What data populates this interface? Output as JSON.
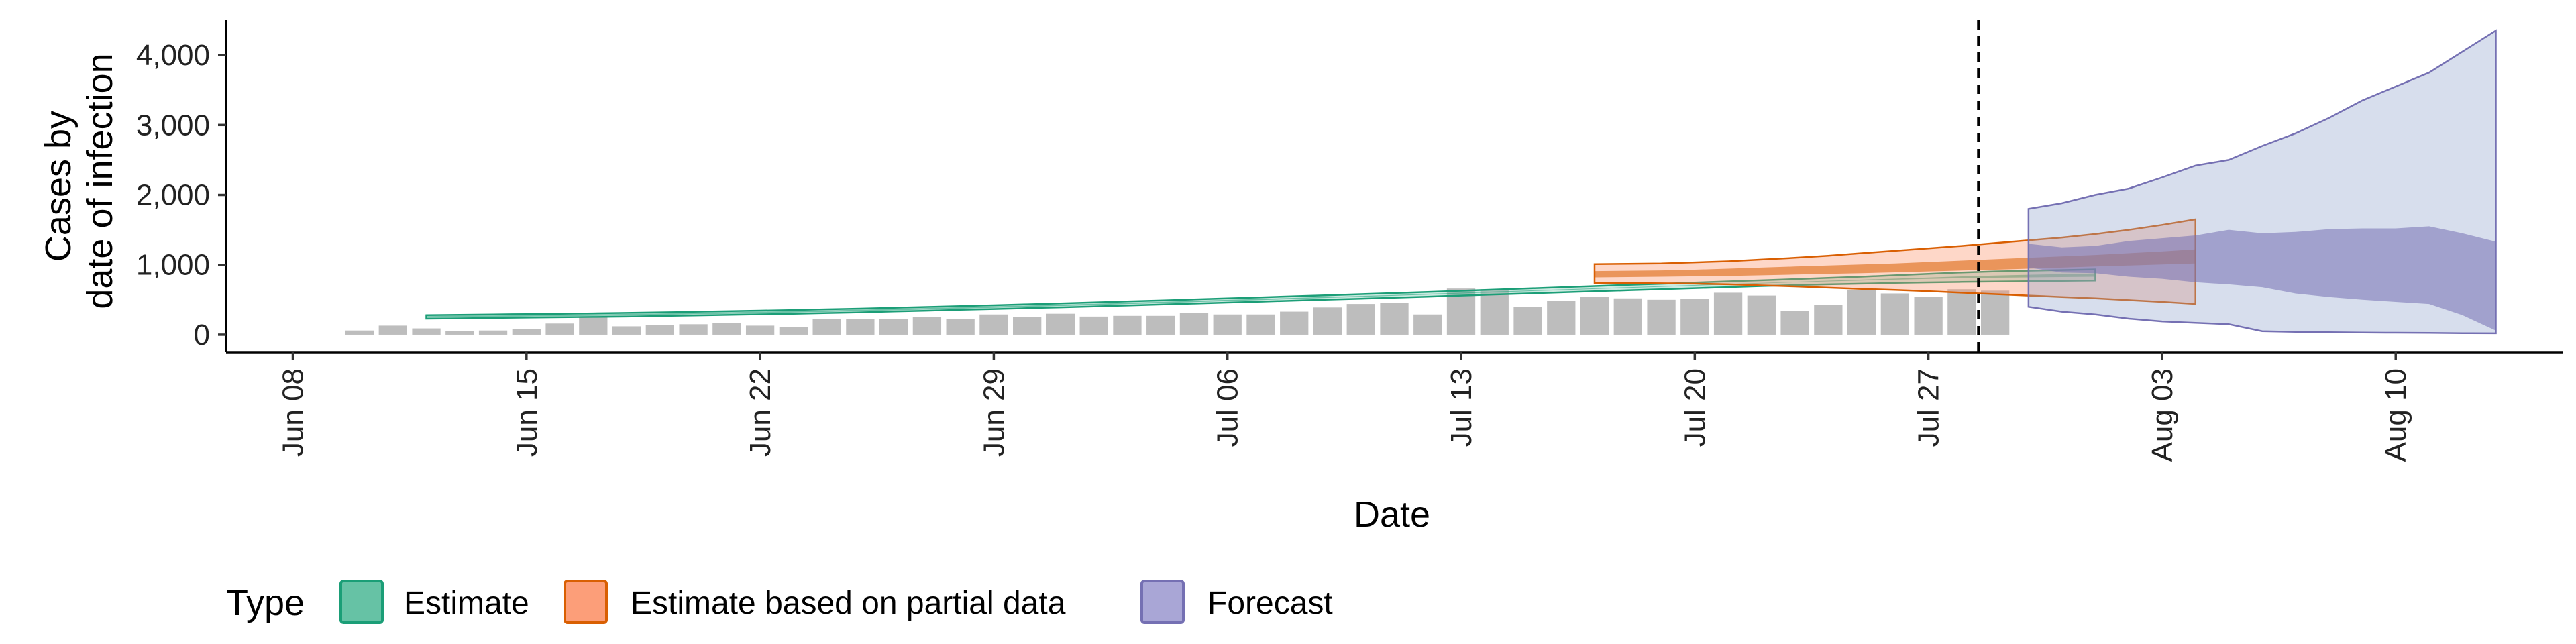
{
  "chart_data": {
    "type": "area",
    "xlabel": "Date",
    "ylabel_lines": [
      "Cases by",
      "date of infection"
    ],
    "ylim": [
      -250,
      4500
    ],
    "xlim": [
      "2021-06-06",
      "2021-08-15"
    ],
    "y_ticks": [
      0,
      1000,
      2000,
      3000,
      4000
    ],
    "y_tick_labels": [
      "0",
      "1,000",
      "2,000",
      "3,000",
      "4,000"
    ],
    "x_ticks": [
      "2021-06-08",
      "2021-06-15",
      "2021-06-22",
      "2021-06-29",
      "2021-07-06",
      "2021-07-13",
      "2021-07-20",
      "2021-07-27",
      "2021-08-03",
      "2021-08-10"
    ],
    "x_tick_labels": [
      "Jun 08",
      "Jun 15",
      "Jun 22",
      "Jun 29",
      "Jul 06",
      "Jul 13",
      "Jul 20",
      "Jul 27",
      "Aug 03",
      "Aug 10"
    ],
    "forecast_cutoff_date": "2021-07-29",
    "bars": {
      "color": "#bdbdbd",
      "start_date": "2021-06-10",
      "values": [
        60,
        130,
        90,
        50,
        60,
        80,
        160,
        260,
        120,
        140,
        150,
        170,
        130,
        110,
        230,
        220,
        230,
        250,
        230,
        290,
        250,
        300,
        260,
        270,
        270,
        310,
        290,
        290,
        330,
        390,
        440,
        460,
        290,
        660,
        650,
        400,
        480,
        540,
        520,
        500,
        510,
        600,
        560,
        340,
        430,
        640,
        590,
        540,
        650,
        630
      ]
    },
    "bands": [
      {
        "type": "Estimate",
        "color": "#1b9e77",
        "fill": "#66c2a5",
        "start_date": "2021-06-12",
        "lower_90": [
          230,
          235,
          240,
          245,
          250,
          255,
          260,
          268,
          276,
          284,
          292,
          300,
          310,
          320,
          332,
          344,
          356,
          368,
          380,
          392,
          405,
          418,
          432,
          446,
          460,
          474,
          488,
          502,
          516,
          530,
          545,
          560,
          575,
          590,
          605,
          620,
          635,
          650,
          665,
          680,
          695,
          710,
          720,
          730,
          740,
          748,
          755,
          760,
          765,
          770,
          775
        ],
        "upper_90": [
          280,
          285,
          290,
          295,
          300,
          306,
          312,
          320,
          328,
          336,
          345,
          354,
          364,
          374,
          386,
          398,
          410,
          422,
          435,
          448,
          462,
          476,
          490,
          505,
          520,
          535,
          550,
          565,
          580,
          595,
          612,
          628,
          645,
          662,
          678,
          695,
          712,
          728,
          745,
          762,
          778,
          795,
          812,
          830,
          850,
          870,
          890,
          905,
          915,
          925,
          935
        ],
        "lower_50": [
          245,
          250,
          255,
          260,
          265,
          270,
          276,
          284,
          292,
          300,
          308,
          317,
          327,
          337,
          349,
          361,
          373,
          385,
          398,
          411,
          424,
          438,
          452,
          467,
          482,
          497,
          512,
          527,
          542,
          557,
          573,
          589,
          605,
          621,
          637,
          653,
          669,
          685,
          701,
          717,
          733,
          749,
          762,
          775,
          787,
          798,
          808,
          815,
          820,
          825,
          830
        ],
        "upper_50": [
          265,
          270,
          275,
          280,
          285,
          291,
          297,
          305,
          313,
          321,
          330,
          338,
          348,
          358,
          370,
          382,
          394,
          406,
          418,
          430,
          444,
          457,
          471,
          485,
          499,
          513,
          527,
          541,
          555,
          569,
          585,
          600,
          616,
          632,
          647,
          663,
          679,
          694,
          710,
          726,
          741,
          757,
          772,
          787,
          802,
          818,
          834,
          847,
          857,
          866,
          875
        ]
      },
      {
        "type": "Estimate based on partial data",
        "color": "#d95f02",
        "fill": "#fc8d62",
        "start_date": "2021-07-17",
        "lower_90": [
          740,
          738,
          735,
          730,
          720,
          705,
          690,
          672,
          655,
          640,
          622,
          600,
          580,
          560,
          540,
          520,
          495,
          470,
          440
        ],
        "upper_90": [
          1010,
          1015,
          1020,
          1035,
          1050,
          1075,
          1100,
          1130,
          1165,
          1200,
          1235,
          1270,
          1310,
          1350,
          1390,
          1440,
          1500,
          1570,
          1650
        ],
        "lower_50": [
          820,
          825,
          830,
          835,
          840,
          850,
          860,
          870,
          880,
          892,
          905,
          918,
          930,
          945,
          960,
          975,
          990,
          1005,
          1020
        ],
        "upper_50": [
          910,
          915,
          920,
          930,
          945,
          960,
          975,
          990,
          1005,
          1020,
          1040,
          1060,
          1080,
          1100,
          1120,
          1140,
          1165,
          1190,
          1220
        ]
      },
      {
        "type": "Forecast",
        "color": "#7570b3",
        "fill": "#8da0cb",
        "start_date": "2021-07-30",
        "lower_90": [
          400,
          330,
          290,
          230,
          190,
          170,
          150,
          50,
          40,
          35,
          30,
          28,
          25,
          22,
          20
        ],
        "upper_90": [
          1800,
          1880,
          2000,
          2090,
          2250,
          2420,
          2500,
          2700,
          2880,
          3100,
          3350,
          3550,
          3750,
          4050,
          4350
        ],
        "lower_50": [
          960,
          890,
          880,
          830,
          800,
          750,
          720,
          680,
          590,
          540,
          500,
          470,
          440,
          280,
          60
        ],
        "upper_50": [
          1300,
          1250,
          1270,
          1340,
          1380,
          1420,
          1500,
          1450,
          1470,
          1510,
          1520,
          1520,
          1550,
          1450,
          1330
        ]
      }
    ],
    "legend": {
      "title": "Type",
      "position": "bottom-left",
      "items": [
        {
          "label": "Estimate",
          "fill": "#66c2a5",
          "stroke": "#1b9e77"
        },
        {
          "label": "Estimate based on partial data",
          "fill": "#fc8d62",
          "stroke": "#d95f02"
        },
        {
          "label": "Forecast",
          "fill": "#8da0cb",
          "stroke": "#7570b3"
        }
      ]
    },
    "grid": false
  }
}
